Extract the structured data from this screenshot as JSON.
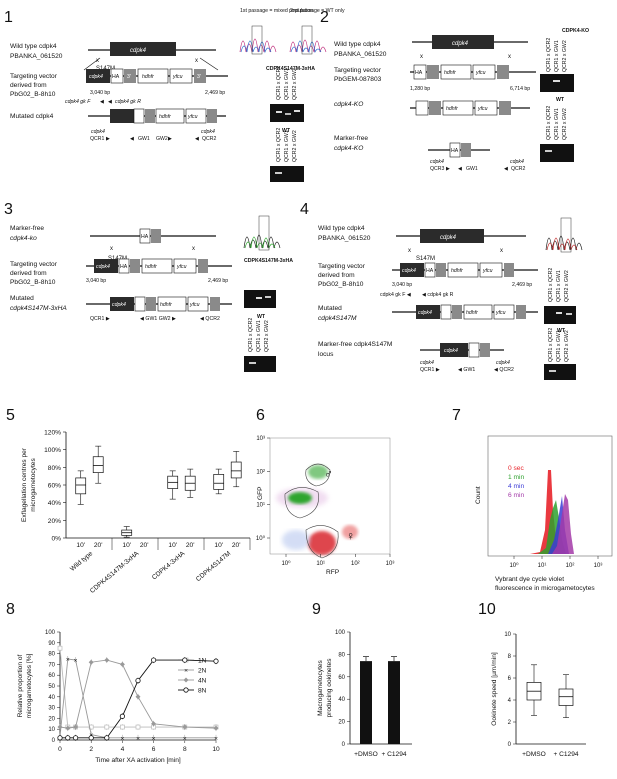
{
  "panels": {
    "p1": {
      "num": "1",
      "wt_title": "Wild type cdpk4",
      "wt_id": "PBANKA_061520",
      "gene": "cdpk4",
      "mutation": "S147M",
      "tv1": "Targeting vector",
      "tv2": "derived from",
      "tv3": "PbG02_B-8h10",
      "mutated": "Mutated cdpk4",
      "bp_left": "3,040 bp",
      "bp_right": "2,469 bp",
      "primers": {
        "gkF": "cdpk4 gk F",
        "gkR": "cdpk4 gk R",
        "qcr1": "QCR1",
        "qcr2": "QCR2",
        "gw1": "GW1",
        "gw2": "GW2"
      },
      "seq1_label": "1st passage = mixed population",
      "seq2_label": "2nd passage = WT only",
      "gel_title": "CDPK4S147M-3xHA",
      "gel_lanes": [
        "QCR1 x QCR2",
        "QCR1 x GW1",
        "QCR2 x GW2"
      ],
      "wt": "WT"
    },
    "p2": {
      "num": "2",
      "wt_title": "Wild type cdpk4",
      "wt_id": "PBANKA_061520",
      "tv1": "Targeting vector",
      "tv2": "PbGEM-087803",
      "ko": "cdpk4-KO",
      "mf1": "Marker-free",
      "mf2": "cdpk4-KO",
      "bp_left": "1,280 bp",
      "bp_right": "6,714 bp",
      "gel_title": "CDPK4-KO",
      "gel_lanes": [
        "QCR1 x QCR2",
        "QCR1 x GW1",
        "QCR2 x GW2"
      ],
      "wt": "WT",
      "primers": {
        "qcr3": "QCR3",
        "qcr2": "QCR2",
        "gw1": "GW1"
      }
    },
    "p3": {
      "num": "3",
      "mf1": "Marker-free",
      "mf2": "cdpk4-ko",
      "mutation": "S147M",
      "tv1": "Targeting vector",
      "tv2": "derived from",
      "tv3": "PbG02_B-8h10",
      "mutated1": "Mutated",
      "mutated2": "cdpk4S147M-3xHA",
      "bp_left": "3,040 bp",
      "bp_right": "2,469 bp",
      "gel_title": "CDPK4S147M-3xHA",
      "gel_lanes": [
        "QCR1 x QCR2",
        "QCR1 x GW1",
        "QCR2 x GW2"
      ],
      "wt": "WT"
    },
    "p4": {
      "num": "4",
      "wt_title": "Wild type cdpk4",
      "wt_id": "PBANKA_061520",
      "mutation": "S147M",
      "tv1": "Targeting vector",
      "tv2": "derived from",
      "tv3": "PbG02_B-8h10",
      "mutated1": "Mutated",
      "mutated2": "cdpk4S147M",
      "mf1": "Marker-free cdpk4S147M",
      "mf2": "locus",
      "bp_left": "3,040 bp",
      "bp_right": "2,469 bp",
      "gel_lanes": [
        "QCR1 x QCR2",
        "QCR1 x GW1",
        "QCR2 x GW2"
      ],
      "wt": "WT"
    },
    "p5": {
      "num": "5"
    },
    "p6": {
      "num": "6"
    },
    "p7": {
      "num": "7"
    },
    "p8": {
      "num": "8"
    },
    "p9": {
      "num": "9"
    },
    "p10": {
      "num": "10"
    }
  },
  "colors": {
    "dark_box": "#2b2b2b",
    "grey_box": "#8a8a8a",
    "gfp": "#2fa52f",
    "rfp": "#d9262d",
    "sec0": "#e8242b",
    "min1": "#2ea12e",
    "min4": "#3b3bd6",
    "min6": "#a33aa8"
  },
  "chart_data": [
    {
      "type": "box",
      "panel": "5",
      "ylabel": "Exflagellation centres per microgametocytes",
      "ylim": [
        0,
        120
      ],
      "yticks": [
        "0%",
        "20%",
        "40%",
        "60%",
        "80%",
        "100%",
        "120%"
      ],
      "groups": [
        "Wild type",
        "CDPK4S147M-3xHA",
        "CDPK4-3xHA",
        "CDPK4S147M"
      ],
      "timepoints": [
        "10'",
        "20'"
      ],
      "boxes": [
        {
          "group": "Wild type",
          "t": "10'",
          "min": 38,
          "q1": 50,
          "med": 60,
          "q3": 68,
          "max": 76
        },
        {
          "group": "Wild type",
          "t": "20'",
          "min": 62,
          "q1": 74,
          "med": 82,
          "q3": 92,
          "max": 104
        },
        {
          "group": "CDPK4S147M-3xHA",
          "t": "10'",
          "min": 1,
          "q1": 3,
          "med": 6,
          "q3": 9,
          "max": 13
        },
        {
          "group": "CDPK4S147M-3xHA",
          "t": "20'",
          "min": 0,
          "q1": 0,
          "med": 0,
          "q3": 0,
          "max": 0
        },
        {
          "group": "CDPK4-3xHA",
          "t": "10'",
          "min": 44,
          "q1": 56,
          "med": 63,
          "q3": 70,
          "max": 76
        },
        {
          "group": "CDPK4-3xHA",
          "t": "20'",
          "min": 46,
          "q1": 54,
          "med": 62,
          "q3": 70,
          "max": 78
        },
        {
          "group": "CDPK4S147M",
          "t": "10'",
          "min": 50,
          "q1": 55,
          "med": 62,
          "q3": 72,
          "max": 78
        },
        {
          "group": "CDPK4S147M",
          "t": "20'",
          "min": 58,
          "q1": 68,
          "med": 76,
          "q3": 86,
          "max": 98
        }
      ]
    },
    {
      "type": "scatter",
      "panel": "6",
      "xlabel": "RFP",
      "ylabel": "GFP",
      "xticks": [
        "10⁰",
        "10¹",
        "10²",
        "10³"
      ],
      "yticks": [
        "10⁰",
        "10¹",
        "10²",
        "10³"
      ],
      "gates": [
        "♂",
        "♀"
      ]
    },
    {
      "type": "histogram",
      "panel": "7",
      "xlabel": "Vybrant dye cycle violet fluorescence in microgametocytes",
      "ylabel": "Count",
      "xticks": [
        "10⁰",
        "10¹",
        "10²",
        "10³"
      ],
      "legend": [
        "0 sec",
        "1 min",
        "4 min",
        "6 min"
      ]
    },
    {
      "type": "line",
      "panel": "8",
      "xlabel": "Time after XA activation [min]",
      "ylabel": "Relative proportion of microgametocytes [%]",
      "ylim": [
        0,
        100
      ],
      "xlim": [
        0,
        10
      ],
      "xticks": [
        "0",
        "2",
        "4",
        "6",
        "8",
        "10"
      ],
      "yticks": [
        "0",
        "10",
        "20",
        "30",
        "40",
        "50",
        "60",
        "70",
        "80",
        "90",
        "100"
      ],
      "x": [
        0,
        0.5,
        1,
        2,
        3,
        4,
        5,
        6,
        8,
        10
      ],
      "series": [
        {
          "name": "1N",
          "values": [
            85,
            12,
            12,
            12,
            12,
            12,
            12,
            12,
            12,
            12
          ]
        },
        {
          "name": "2N",
          "values": [
            3,
            75,
            74,
            5,
            2,
            2,
            2,
            2,
            2,
            2
          ]
        },
        {
          "name": "4N",
          "values": [
            12,
            11,
            12,
            72,
            74,
            70,
            40,
            15,
            12,
            11
          ]
        },
        {
          "name": "8N",
          "values": [
            2,
            2,
            2,
            2,
            2,
            22,
            55,
            74,
            74,
            73
          ]
        }
      ]
    },
    {
      "type": "bar",
      "panel": "9",
      "ylabel": "Macrogametocytes producing ookinetes",
      "ylim": [
        0,
        100
      ],
      "yticks": [
        "0",
        "20",
        "40",
        "60",
        "80",
        "100"
      ],
      "categories": [
        "+DMSO",
        "+ C1294"
      ],
      "values": [
        74,
        74
      ],
      "errors": [
        4,
        4
      ]
    },
    {
      "type": "box",
      "panel": "10",
      "ylabel": "Ookinete speed [µm/min]",
      "ylim": [
        0,
        10
      ],
      "yticks": [
        "0",
        "2",
        "4",
        "6",
        "8",
        "10"
      ],
      "categories": [
        "+DMSO",
        "+ C1294"
      ],
      "boxes": [
        {
          "min": 2.6,
          "q1": 4.0,
          "med": 4.8,
          "q3": 5.6,
          "max": 7.2
        },
        {
          "min": 2.4,
          "q1": 3.5,
          "med": 4.3,
          "q3": 5.0,
          "max": 6.3
        }
      ]
    }
  ]
}
